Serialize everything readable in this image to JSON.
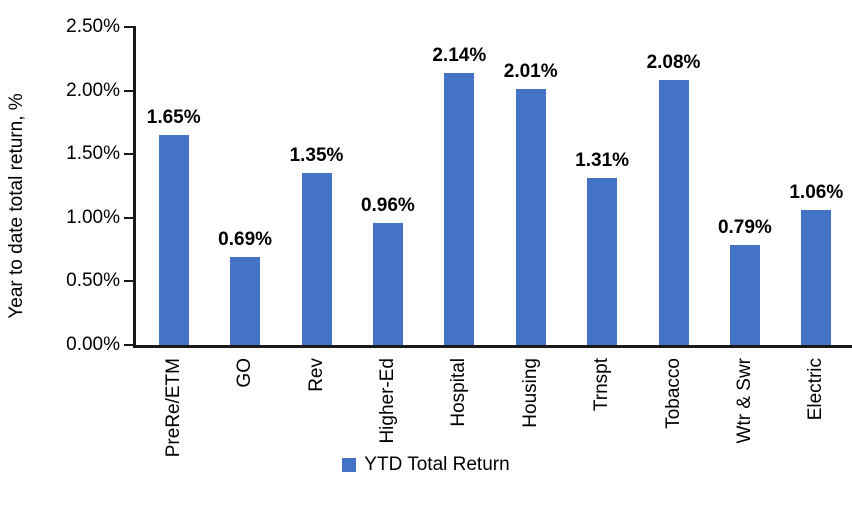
{
  "chart_data": {
    "type": "bar",
    "title": "",
    "xlabel": "",
    "ylabel": "Year to date total return, %",
    "categories": [
      "PreRe/ETM",
      "GO",
      "Rev",
      "Higher-Ed",
      "Hospital",
      "Housing",
      "Trnspt",
      "Tobacco",
      "Wtr & Swr",
      "Electric"
    ],
    "values": [
      1.65,
      0.69,
      1.35,
      0.96,
      2.14,
      2.01,
      1.31,
      2.08,
      0.79,
      1.06
    ],
    "value_labels": [
      "1.65%",
      "0.69%",
      "1.35%",
      "0.96%",
      "2.14%",
      "2.01%",
      "1.31%",
      "2.08%",
      "0.79%",
      "1.06%"
    ],
    "ylim": [
      0,
      2.5
    ],
    "ytick_values": [
      0,
      0.5,
      1.0,
      1.5,
      2.0,
      2.5
    ],
    "ytick_labels": [
      "0.00%",
      "0.50%",
      "1.00%",
      "1.50%",
      "2.00%",
      "2.50%"
    ],
    "grid": false,
    "bar_color": "#4472C4",
    "axis_color": "#1a1a1a",
    "label_color": "#000000",
    "legend": {
      "position": "bottom",
      "label": "YTD Total Return"
    }
  }
}
